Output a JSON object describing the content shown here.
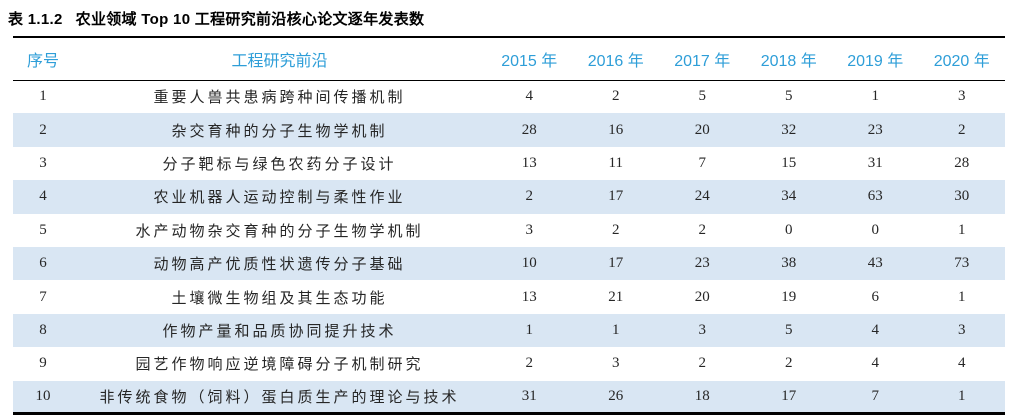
{
  "caption": {
    "label": "表 1.1.2",
    "text": "农业领域 Top 10 工程研究前沿核心论文逐年发表数"
  },
  "table": {
    "columns": [
      "序号",
      "工程研究前沿",
      "2015 年",
      "2016 年",
      "2017 年",
      "2018 年",
      "2019 年",
      "2020 年"
    ],
    "rows": [
      {
        "no": "1",
        "front": "重要人兽共患病跨种间传播机制",
        "values": [
          "4",
          "2",
          "5",
          "5",
          "1",
          "3"
        ]
      },
      {
        "no": "2",
        "front": "杂交育种的分子生物学机制",
        "values": [
          "28",
          "16",
          "20",
          "32",
          "23",
          "2"
        ]
      },
      {
        "no": "3",
        "front": "分子靶标与绿色农药分子设计",
        "values": [
          "13",
          "11",
          "7",
          "15",
          "31",
          "28"
        ]
      },
      {
        "no": "4",
        "front": "农业机器人运动控制与柔性作业",
        "values": [
          "2",
          "17",
          "24",
          "34",
          "63",
          "30"
        ]
      },
      {
        "no": "5",
        "front": "水产动物杂交育种的分子生物学机制",
        "values": [
          "3",
          "2",
          "2",
          "0",
          "0",
          "1"
        ]
      },
      {
        "no": "6",
        "front": "动物高产优质性状遗传分子基础",
        "values": [
          "10",
          "17",
          "23",
          "38",
          "43",
          "73"
        ]
      },
      {
        "no": "7",
        "front": "土壤微生物组及其生态功能",
        "values": [
          "13",
          "21",
          "20",
          "19",
          "6",
          "1"
        ]
      },
      {
        "no": "8",
        "front": "作物产量和品质协同提升技术",
        "values": [
          "1",
          "1",
          "3",
          "5",
          "4",
          "3"
        ]
      },
      {
        "no": "9",
        "front": "园艺作物响应逆境障碍分子机制研究",
        "values": [
          "2",
          "3",
          "2",
          "2",
          "4",
          "4"
        ]
      },
      {
        "no": "10",
        "front": "非传统食物（饲料）蛋白质生产的理论与技术",
        "values": [
          "31",
          "26",
          "18",
          "17",
          "7",
          "1"
        ]
      }
    ]
  },
  "colors": {
    "header_text": "#2E9ED8",
    "stripe_background": "#D9E6F3",
    "rule": "#000000"
  }
}
